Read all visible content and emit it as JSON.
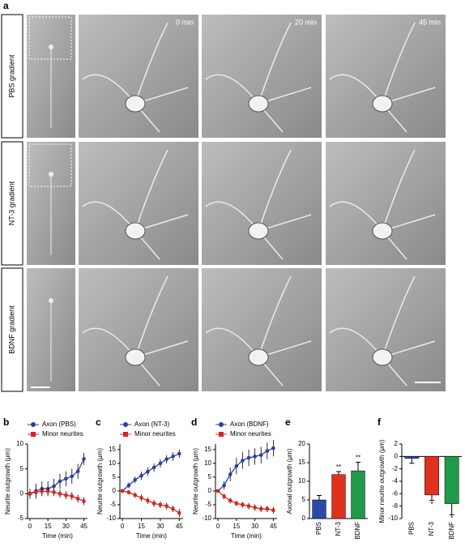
{
  "panel_a": {
    "label": "a",
    "rows": [
      "PBS gradient",
      "NT-3 gradient",
      "BDNF gradient"
    ],
    "times": [
      "0 min",
      "20 min",
      "45 min"
    ]
  },
  "chart_data": [
    {
      "type": "line",
      "label": "b",
      "ylabel": "Neurite outgrowth (μm)",
      "xlabel": "Time (min)",
      "x": [
        0,
        5,
        10,
        15,
        20,
        25,
        30,
        35,
        40,
        45
      ],
      "series": [
        {
          "name": "Axon (PBS)",
          "color": "#2b3ea8",
          "marker": "circle",
          "values": [
            0,
            0.5,
            1,
            1,
            1.5,
            2.5,
            3,
            3.5,
            4.5,
            7
          ],
          "errors": [
            1,
            1.5,
            1.5,
            1.5,
            1.5,
            1.5,
            1.5,
            1.5,
            1.5,
            1.2
          ]
        },
        {
          "name": "Minor neurites",
          "color": "#e0201b",
          "marker": "square",
          "values": [
            0,
            0.3,
            0.5,
            0.5,
            0.3,
            0,
            -0.3,
            -0.5,
            -1,
            -1.5
          ],
          "errors": [
            0.5,
            0.8,
            0.8,
            0.8,
            0.8,
            0.8,
            0.8,
            0.8,
            0.8,
            0.8
          ]
        }
      ],
      "xlim": [
        -2,
        48
      ],
      "ylim": [
        -5,
        10
      ],
      "xticks": [
        0,
        15,
        30,
        45
      ],
      "yticks": [
        -5,
        0,
        5,
        10
      ]
    },
    {
      "type": "line",
      "label": "c",
      "ylabel": "Neurite outgrowth (μm)",
      "xlabel": "Time (min)",
      "x": [
        0,
        5,
        10,
        15,
        20,
        25,
        30,
        35,
        40,
        45
      ],
      "series": [
        {
          "name": "Axon (NT-3)",
          "color": "#2b3ea8",
          "marker": "circle",
          "values": [
            0,
            2,
            4,
            5.5,
            7,
            8.5,
            10,
            11.5,
            12.5,
            13.5
          ],
          "errors": [
            0.5,
            1,
            1.2,
            1.5,
            1.5,
            1.5,
            1.5,
            1.5,
            1.5,
            1.5
          ]
        },
        {
          "name": "Minor neurites",
          "color": "#e0201b",
          "marker": "square",
          "values": [
            0,
            -0.5,
            -1.5,
            -2.5,
            -3.5,
            -4.5,
            -5,
            -5.5,
            -6.5,
            -8
          ],
          "errors": [
            0.5,
            0.8,
            1,
            1.2,
            1.2,
            1.2,
            1.2,
            1.2,
            1.2,
            1.5
          ]
        }
      ],
      "xlim": [
        -2,
        48
      ],
      "ylim": [
        -10,
        17
      ],
      "xticks": [
        0,
        15,
        30,
        45
      ],
      "yticks": [
        -10,
        -5,
        0,
        5,
        10,
        15
      ]
    },
    {
      "type": "line",
      "label": "d",
      "ylabel": "Neurite outgrowth (μm)",
      "xlabel": "Time (min)",
      "x": [
        0,
        5,
        10,
        15,
        20,
        25,
        30,
        35,
        40,
        45
      ],
      "series": [
        {
          "name": "Axon (BDNF)",
          "color": "#2b3ea8",
          "marker": "circle",
          "values": [
            0,
            2,
            6,
            9,
            11,
            12,
            12.5,
            13,
            14.5,
            15.5
          ],
          "errors": [
            0.5,
            1.5,
            2.5,
            3,
            3,
            3,
            3,
            3,
            3,
            3
          ]
        },
        {
          "name": "Minor neurites",
          "color": "#e0201b",
          "marker": "square",
          "values": [
            0,
            -2,
            -3.5,
            -4.5,
            -5,
            -5.5,
            -6,
            -6.5,
            -6.5,
            -7
          ],
          "errors": [
            0.5,
            1,
            1,
            1,
            1,
            1.2,
            1.2,
            1.2,
            1.2,
            1.2
          ]
        }
      ],
      "xlim": [
        -2,
        48
      ],
      "ylim": [
        -10,
        17
      ],
      "xticks": [
        0,
        15,
        30,
        45
      ],
      "yticks": [
        -10,
        -5,
        0,
        5,
        10,
        15
      ]
    },
    {
      "type": "bar",
      "label": "e",
      "ylabel": "Axonal outgrowth (μm)",
      "categories": [
        "PBS",
        "NT-3",
        "BDNF"
      ],
      "values": [
        5,
        11.8,
        12.8
      ],
      "errors": [
        1.2,
        0.8,
        2.3
      ],
      "colors": [
        "#2b4aa8",
        "#e0301e",
        "#1f9a4a"
      ],
      "annotations": [
        null,
        "**",
        "**"
      ],
      "ylim": [
        0,
        20
      ],
      "yticks": [
        0,
        5,
        10,
        15,
        20
      ]
    },
    {
      "type": "bar",
      "label": "f",
      "ylabel": "Minor neurite outgrowth (μm)",
      "categories": [
        "PBS",
        "NT-3",
        "BDNF"
      ],
      "values": [
        -0.3,
        -6.2,
        -7.6
      ],
      "errors": [
        0.8,
        0.9,
        1.8
      ],
      "colors": [
        "#2b4aa8",
        "#e0301e",
        "#1f9a4a"
      ],
      "annotations": [
        null,
        "*",
        "*"
      ],
      "ylim": [
        -10,
        2
      ],
      "yticks": [
        -10,
        -8,
        -6,
        -4,
        -2,
        0,
        2
      ]
    }
  ]
}
